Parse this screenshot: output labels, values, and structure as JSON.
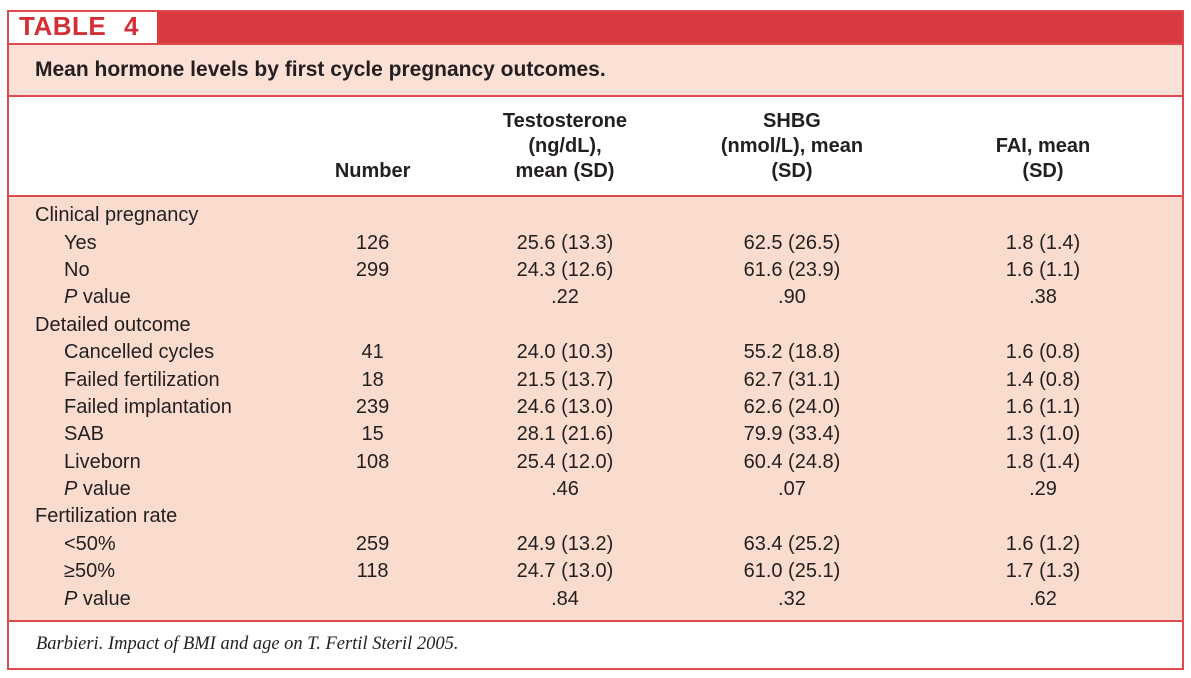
{
  "tag": "TABLE 4",
  "title": "Mean hormone levels by first cycle pregnancy outcomes.",
  "columns": {
    "label": "",
    "number": "Number",
    "testosterone": "Testosterone\n(ng/dL),\nmean (SD)",
    "shbg": "SHBG\n(nmol/L), mean\n(SD)",
    "fai": "FAI, mean\n(SD)"
  },
  "rows": [
    {
      "type": "group",
      "label": "Clinical pregnancy"
    },
    {
      "type": "item",
      "label": "Yes",
      "number": "126",
      "testosterone": "25.6 (13.3)",
      "shbg": "62.5 (26.5)",
      "fai": "1.8 (1.4)"
    },
    {
      "type": "item",
      "label": "No",
      "number": "299",
      "testosterone": "24.3 (12.6)",
      "shbg": "61.6 (23.9)",
      "fai": "1.6 (1.1)"
    },
    {
      "type": "pvalue",
      "label_p": "P",
      "label_rest": " value",
      "testosterone": ".22",
      "shbg": ".90",
      "fai": ".38"
    },
    {
      "type": "group",
      "label": "Detailed outcome"
    },
    {
      "type": "item",
      "label": "Cancelled cycles",
      "number": "41",
      "testosterone": "24.0 (10.3)",
      "shbg": "55.2 (18.8)",
      "fai": "1.6 (0.8)"
    },
    {
      "type": "item",
      "label": "Failed fertilization",
      "number": "18",
      "testosterone": "21.5 (13.7)",
      "shbg": "62.7 (31.1)",
      "fai": "1.4 (0.8)"
    },
    {
      "type": "item",
      "label": "Failed implantation",
      "number": "239",
      "testosterone": "24.6 (13.0)",
      "shbg": "62.6 (24.0)",
      "fai": "1.6 (1.1)"
    },
    {
      "type": "item",
      "label": "SAB",
      "number": "15",
      "testosterone": "28.1 (21.6)",
      "shbg": "79.9 (33.4)",
      "fai": "1.3 (1.0)"
    },
    {
      "type": "item",
      "label": "Liveborn",
      "number": "108",
      "testosterone": "25.4 (12.0)",
      "shbg": "60.4 (24.8)",
      "fai": "1.8 (1.4)"
    },
    {
      "type": "pvalue",
      "label_p": "P",
      "label_rest": " value",
      "testosterone": ".46",
      "shbg": ".07",
      "fai": ".29"
    },
    {
      "type": "group",
      "label": "Fertilization rate"
    },
    {
      "type": "item",
      "label": "<50%",
      "number": "259",
      "testosterone": "24.9 (13.2)",
      "shbg": "63.4 (25.2)",
      "fai": "1.6 (1.2)"
    },
    {
      "type": "item",
      "label": "≥50%",
      "number": "118",
      "testosterone": "24.7 (13.0)",
      "shbg": "61.0 (25.1)",
      "fai": "1.7 (1.3)"
    },
    {
      "type": "pvalue",
      "label_p": "P",
      "label_rest": " value",
      "testosterone": ".84",
      "shbg": ".32",
      "fai": ".62"
    }
  ],
  "footer": {
    "citation": "Barbieri. Impact of BMI and age on T. Fertil Steril 2005."
  },
  "colors": {
    "red": "#d93a40",
    "tag_red": "#d32f36",
    "rule": "#dd4b50",
    "pink_title": "#fae0d5",
    "pink_body": "#f9dccd",
    "text": "#231f20"
  }
}
